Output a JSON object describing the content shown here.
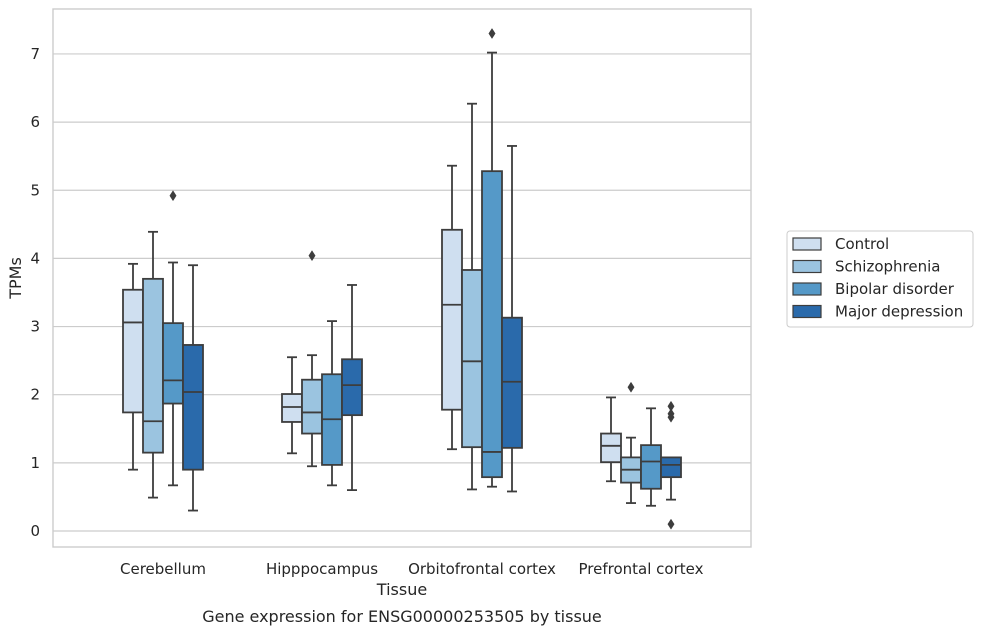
{
  "caption": "Gene expression for ENSG00000253505 by tissue",
  "chart_data": {
    "type": "box",
    "xlabel": "Tissue",
    "ylabel": "TPMs",
    "ylim": [
      -0.25,
      7.65
    ],
    "yticks": [
      0,
      1,
      2,
      3,
      4,
      5,
      6,
      7
    ],
    "grid": "horizontal",
    "legend_position": "right",
    "categories": [
      "Cerebellum",
      "Hipppocampus",
      "Orbitofrontal cortex",
      "Prefrontal cortex"
    ],
    "series": [
      {
        "name": "Control",
        "color": "#cfdff0",
        "boxes": [
          {
            "whisker_low": 0.9,
            "q1": 1.74,
            "median": 3.06,
            "q3": 3.54,
            "whisker_high": 3.92,
            "outliers": []
          },
          {
            "whisker_low": 1.14,
            "q1": 1.6,
            "median": 1.82,
            "q3": 2.01,
            "whisker_high": 2.55,
            "outliers": []
          },
          {
            "whisker_low": 1.2,
            "q1": 1.78,
            "median": 3.32,
            "q3": 4.42,
            "whisker_high": 5.36,
            "outliers": []
          },
          {
            "whisker_low": 0.73,
            "q1": 1.01,
            "median": 1.25,
            "q3": 1.43,
            "whisker_high": 1.96,
            "outliers": []
          }
        ]
      },
      {
        "name": "Schizophrenia",
        "color": "#9bc4e0",
        "boxes": [
          {
            "whisker_low": 0.49,
            "q1": 1.15,
            "median": 1.61,
            "q3": 3.7,
            "whisker_high": 4.39,
            "outliers": []
          },
          {
            "whisker_low": 0.95,
            "q1": 1.43,
            "median": 1.74,
            "q3": 2.22,
            "whisker_high": 2.58,
            "outliers": [
              4.04
            ]
          },
          {
            "whisker_low": 0.61,
            "q1": 1.23,
            "median": 2.49,
            "q3": 3.83,
            "whisker_high": 6.27,
            "outliers": []
          },
          {
            "whisker_low": 0.41,
            "q1": 0.71,
            "median": 0.9,
            "q3": 1.08,
            "whisker_high": 1.37,
            "outliers": [
              2.11
            ]
          }
        ]
      },
      {
        "name": "Bipolar disorder",
        "color": "#5599c8",
        "boxes": [
          {
            "whisker_low": 0.67,
            "q1": 1.87,
            "median": 2.21,
            "q3": 3.05,
            "whisker_high": 3.94,
            "outliers": [
              4.92
            ]
          },
          {
            "whisker_low": 0.67,
            "q1": 0.97,
            "median": 1.64,
            "q3": 2.3,
            "whisker_high": 3.08,
            "outliers": []
          },
          {
            "whisker_low": 0.65,
            "q1": 0.79,
            "median": 1.16,
            "q3": 5.28,
            "whisker_high": 7.02,
            "outliers": [
              7.3
            ]
          },
          {
            "whisker_low": 0.37,
            "q1": 0.62,
            "median": 1.02,
            "q3": 1.26,
            "whisker_high": 1.8,
            "outliers": []
          }
        ]
      },
      {
        "name": "Major depression",
        "color": "#2a6aab",
        "boxes": [
          {
            "whisker_low": 0.3,
            "q1": 0.9,
            "median": 2.04,
            "q3": 2.73,
            "whisker_high": 3.9,
            "outliers": []
          },
          {
            "whisker_low": 0.6,
            "q1": 1.7,
            "median": 2.14,
            "q3": 2.52,
            "whisker_high": 3.61,
            "outliers": []
          },
          {
            "whisker_low": 0.58,
            "q1": 1.22,
            "median": 2.19,
            "q3": 3.13,
            "whisker_high": 5.65,
            "outliers": []
          },
          {
            "whisker_low": 0.46,
            "q1": 0.79,
            "median": 0.97,
            "q3": 1.08,
            "whisker_high": 1.08,
            "outliers": [
              1.83,
              1.67,
              1.72,
              0.1
            ]
          }
        ]
      }
    ]
  }
}
